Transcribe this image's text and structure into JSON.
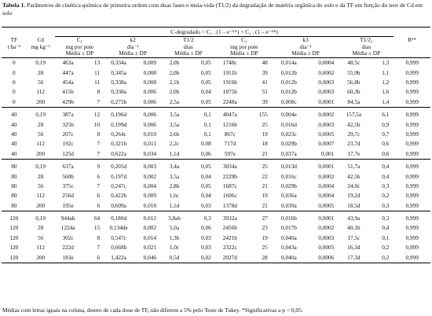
{
  "caption": {
    "label": "Tabela 1.",
    "text": "Parâmetros de cinética química de primeira ordem com duas fases e meia-vida (T1/2) da degradação de matéria orgânica do solo e da TF em função do teor de Cd em solo"
  },
  "headers": {
    "tf": "TF",
    "tf_unit": "t ha⁻¹",
    "cd": "Cd",
    "cd_unit": "mg kg⁻¹",
    "group": "C-degradado = C₁ . (1 – e⁻ᵏ²ᵗ) + C₂ . (1 – e⁻ᵏ³ᵗ)",
    "c1": "C₁",
    "c1_unit": "mg por pote",
    "c1_stat": "Média ± DP",
    "k2": "k2",
    "k2_unit": "dia⁻¹",
    "k2_stat": "Média ± DP",
    "t1": "T1/2",
    "t1_unit": "dias",
    "t1_stat": "Média ± DP",
    "c2": "C₂",
    "c2_unit": "mg por pote",
    "c2_stat": "Média ± DP",
    "k3": "k3",
    "k3_unit": "dia⁻¹",
    "k3_stat": "Média ± DP",
    "t2": "T1/2₂",
    "t2_unit": "dias",
    "t2_stat": "Média ± DP",
    "r2": "R²*"
  },
  "rows": [
    [
      "0",
      "0,19",
      "463a",
      "13",
      "0,334a",
      "0,009",
      "2,0b",
      "0,05",
      "1748c",
      "48",
      "0,014a",
      "0,0004",
      "48,5c",
      "1,3",
      "0,999"
    ],
    [
      "0",
      "28",
      "447a",
      "11",
      "0,345a",
      "0,008",
      "2,0b",
      "0,05",
      "1911b",
      "39",
      "0,012b",
      "0,0002",
      "55,9b",
      "1,1",
      "0,999"
    ],
    [
      "0",
      "56",
      "454a",
      "11",
      "0,338a",
      "0,008",
      "2,1b",
      "0,05",
      "1916b",
      "41",
      "0,012b",
      "0,0003",
      "56,8b",
      "1,2",
      "0,999"
    ],
    [
      "0",
      "112",
      "415b",
      "8",
      "0,338a",
      "0,006",
      "2,0b",
      "0,04",
      "1875b",
      "51",
      "0,012b",
      "0,0003",
      "60,3b",
      "1,6",
      "0,999"
    ],
    [
      "0",
      "200",
      "429b",
      "7",
      "0,275b",
      "0,006",
      "2,5a",
      "0,05",
      "2248a",
      "39",
      "0,008c",
      "0,0001",
      "84,5a",
      "1,4",
      "0,999"
    ],
    [
      "40",
      "0,19",
      "387a",
      "12",
      "0,196d",
      "0,006",
      "3,5a",
      "0,1",
      "4047a",
      "155",
      "0,004e",
      "0,0002",
      "157,5a",
      "6,1",
      "0,999"
    ],
    [
      "40",
      "28",
      "325b",
      "10",
      "0,199d",
      "0,006",
      "3,5a",
      "0,1",
      "1216b",
      "25",
      "0,016d",
      "0,0003",
      "42,5b",
      "0,9",
      "0,999"
    ],
    [
      "40",
      "56",
      "207c",
      "8",
      "0,264c",
      "0,010",
      "2,6b",
      "0,1",
      "867c",
      "19",
      "0,023c",
      "0,0005",
      "29,7c",
      "0,7",
      "0,999"
    ],
    [
      "40",
      "112",
      "192c",
      "7",
      "0,321b",
      "0,011",
      "2,2c",
      "0,08",
      "717d",
      "18",
      "0,029b",
      "0,0007",
      "23,7d",
      "0,6",
      "0,999"
    ],
    [
      "40",
      "200",
      "125d",
      "7",
      "0,622a",
      "0,034",
      "1,1d",
      "0,06",
      "597e",
      "21",
      "0,037a",
      "0,001",
      "17,7e",
      "0,6",
      "0,999"
    ],
    [
      "80",
      "0,19",
      "637a",
      "9",
      "0,205d",
      "0,003",
      "3,4a",
      "0,05",
      "3034a",
      "25",
      "0,013d",
      "0,0001",
      "51,7a",
      "0,4",
      "0,999"
    ],
    [
      "80",
      "28",
      "560b",
      "6",
      "0,197d",
      "0,002",
      "3,5a",
      "0,04",
      "2229b",
      "22",
      "0,016c",
      "0,0002",
      "42,5b",
      "0,4",
      "0,999"
    ],
    [
      "80",
      "56",
      "375c",
      "7",
      "0,247c",
      "0,004",
      "2,8b",
      "0,05",
      "1687c",
      "21",
      "0,029b",
      "0,0004",
      "24,0c",
      "0,3",
      "0,999"
    ],
    [
      "80",
      "112",
      "256d",
      "6",
      "0,422b",
      "0,009",
      "1,6c",
      "0,04",
      "1606c",
      "19",
      "0,036a",
      "0,0004",
      "19,2d",
      "0,2",
      "0,999"
    ],
    [
      "80",
      "200",
      "195e",
      "6",
      "0,609a",
      "0,018",
      "1,1d",
      "0,03",
      "1378d",
      "21",
      "0,039a",
      "0,0005",
      "18,5d",
      "0,3",
      "0,999"
    ],
    [
      "120",
      "0,19",
      "944ab",
      "64",
      "0,180d",
      "0,012",
      "3,8ab",
      "0,3",
      "3932a",
      "27",
      "0,016b",
      "0,0001",
      "43,9a",
      "0,3",
      "0,999"
    ],
    [
      "120",
      "28",
      "1224a",
      "15",
      "0,134de",
      "0,002",
      "5,0a",
      "0,06",
      "2456b",
      "23",
      "0,017b",
      "0,0002",
      "40,1b",
      "0,4",
      "0,999"
    ],
    [
      "120",
      "56",
      "302c",
      "8",
      "0,547c",
      "0,014",
      "1,3b",
      "0,03",
      "2421b",
      "19",
      "0,040a",
      "0,0003",
      "17,5c",
      "0,1",
      "0,999"
    ],
    [
      "120",
      "112",
      "222d",
      "7",
      "0,668b",
      "0,021",
      "1,0c",
      "0,03",
      "2322c",
      "25",
      "0,043a",
      "0,0005",
      "16,3d",
      "0,2",
      "0,999"
    ],
    [
      "120",
      "200",
      "183e",
      "6",
      "1,422a",
      "0,046",
      "0,5d",
      "0,02",
      "2027d",
      "28",
      "0,040a",
      "0,0006",
      "17,3d",
      "0,2",
      "0,999"
    ]
  ],
  "footnote": "Médias com letras iguais na coluna, dentro de cada dose de TF, não diferem a 5% pelo Teste de Tukey. *Significativas a p < 0,05."
}
